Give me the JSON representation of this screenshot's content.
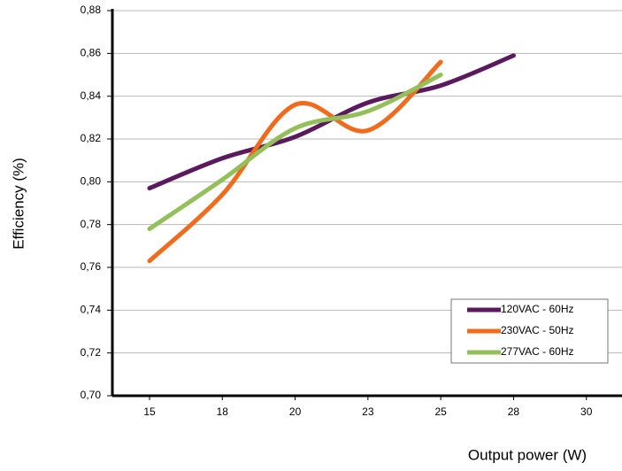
{
  "chart_data": {
    "type": "line",
    "x_label": "Output power (W)",
    "y_label": "Efficiency (%)",
    "categories": [
      "15",
      "18",
      "20",
      "23",
      "25",
      "28",
      "30"
    ],
    "series": [
      {
        "name": "120VAC - 60Hz",
        "color": "#5c1a5e",
        "values": [
          0.797,
          0.811,
          0.821,
          0.837,
          0.845,
          0.859,
          null
        ]
      },
      {
        "name": "230VAC - 50Hz",
        "color": "#f26b1d",
        "values": [
          0.763,
          0.794,
          0.836,
          0.824,
          0.856,
          null,
          null
        ]
      },
      {
        "name": "277VAC - 60Hz",
        "color": "#93c05a",
        "values": [
          0.778,
          0.801,
          0.825,
          0.833,
          0.85,
          null,
          null
        ]
      }
    ],
    "ylim": [
      0.7,
      0.88
    ],
    "yticks": [
      {
        "value": 0.7,
        "label": "0,70"
      },
      {
        "value": 0.72,
        "label": "0,72"
      },
      {
        "value": 0.74,
        "label": "0,74"
      },
      {
        "value": 0.76,
        "label": "0,76"
      },
      {
        "value": 0.78,
        "label": "0,78"
      },
      {
        "value": 0.8,
        "label": "0,80"
      },
      {
        "value": 0.82,
        "label": "0,82"
      },
      {
        "value": 0.84,
        "label": "0,84"
      },
      {
        "value": 0.86,
        "label": "0,86"
      },
      {
        "value": 0.88,
        "label": "0,88"
      }
    ],
    "grid": true,
    "smooth": true,
    "legend": "lower right"
  }
}
